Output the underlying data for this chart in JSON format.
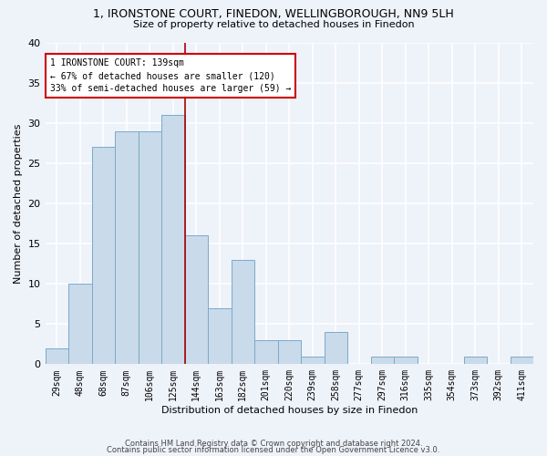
{
  "title1": "1, IRONSTONE COURT, FINEDON, WELLINGBOROUGH, NN9 5LH",
  "title2": "Size of property relative to detached houses in Finedon",
  "xlabel": "Distribution of detached houses by size in Finedon",
  "ylabel": "Number of detached properties",
  "categories": [
    "29sqm",
    "48sqm",
    "68sqm",
    "87sqm",
    "106sqm",
    "125sqm",
    "144sqm",
    "163sqm",
    "182sqm",
    "201sqm",
    "220sqm",
    "239sqm",
    "258sqm",
    "277sqm",
    "297sqm",
    "316sqm",
    "335sqm",
    "354sqm",
    "373sqm",
    "392sqm",
    "411sqm"
  ],
  "values": [
    2,
    10,
    27,
    29,
    29,
    31,
    16,
    7,
    13,
    3,
    3,
    1,
    4,
    0,
    1,
    1,
    0,
    0,
    1,
    0,
    1
  ],
  "bar_color": "#c9daea",
  "bar_edge_color": "#7aaac8",
  "red_line_index": 5.5,
  "annotation_line1": "1 IRONSTONE COURT: 139sqm",
  "annotation_line2": "← 67% of detached houses are smaller (120)",
  "annotation_line3": "33% of semi-detached houses are larger (59) →",
  "annotation_box_color": "#ffffff",
  "annotation_box_edge": "#cc0000",
  "footer1": "Contains HM Land Registry data © Crown copyright and database right 2024.",
  "footer2": "Contains public sector information licensed under the Open Government Licence v3.0.",
  "ylim": [
    0,
    40
  ],
  "yticks": [
    0,
    5,
    10,
    15,
    20,
    25,
    30,
    35,
    40
  ],
  "bg_color": "#eef2f9",
  "grid_color": "#ffffff",
  "title1_fontsize": 9,
  "title2_fontsize": 8,
  "xlabel_fontsize": 8,
  "ylabel_fontsize": 8,
  "tick_fontsize": 7,
  "annotation_fontsize": 7,
  "footer_fontsize": 6
}
